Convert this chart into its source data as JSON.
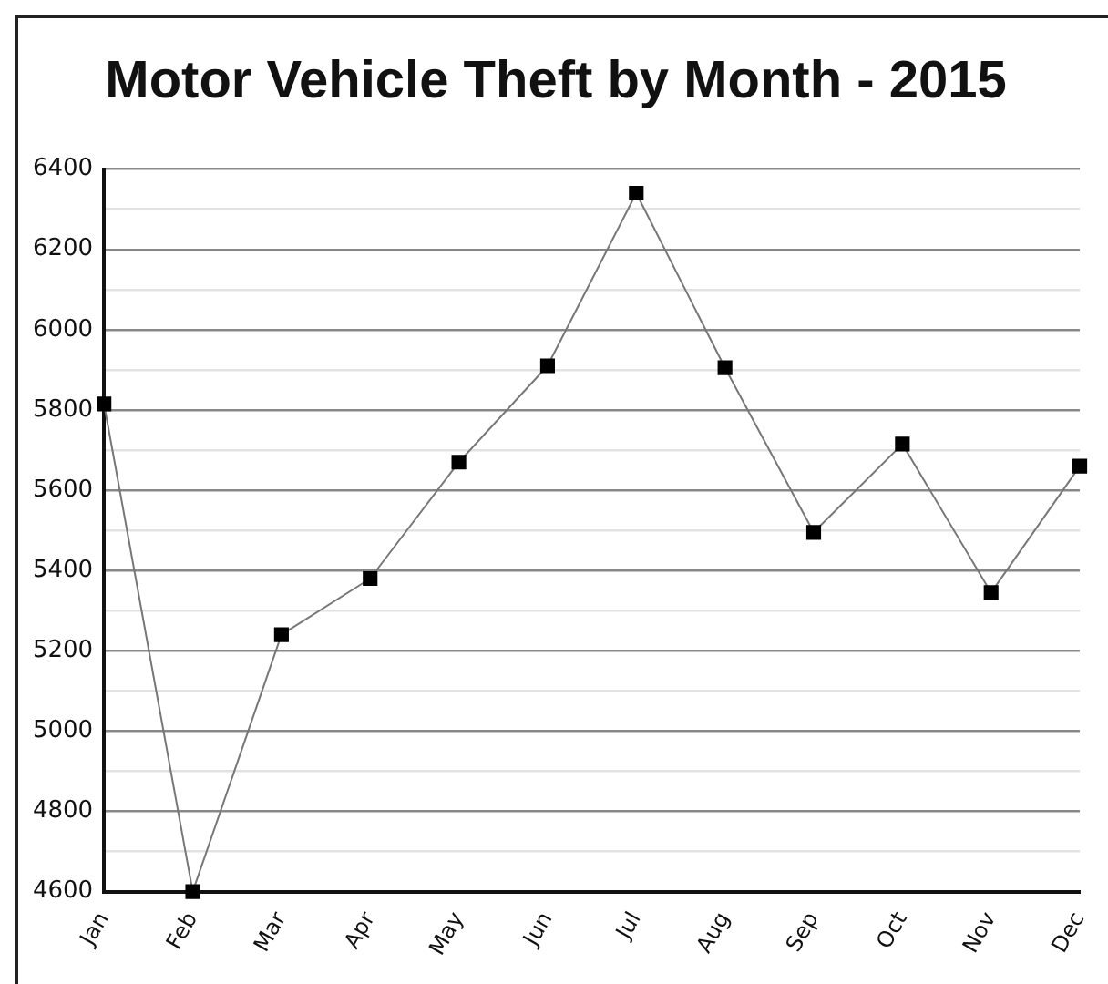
{
  "chart_data": {
    "type": "line",
    "title": "Motor Vehicle Theft by Month - 2015",
    "categories": [
      "Jan",
      "Feb",
      "Mar",
      "Apr",
      "May",
      "Jun",
      "Jul",
      "Aug",
      "Sep",
      "Oct",
      "Nov",
      "Dec"
    ],
    "series": [
      {
        "color": "#000000",
        "values": [
          5815,
          4600,
          5240,
          5380,
          5670,
          5910,
          6340,
          5905,
          5495,
          5715,
          5345,
          5660
        ]
      }
    ],
    "ylim": [
      4600,
      6400
    ],
    "yticks": [
      4600,
      {
        "value": 4700,
        "label": null
      },
      4800,
      {
        "value": 4900,
        "label": null
      },
      5000,
      {
        "value": 5100,
        "label": null
      },
      5200,
      {
        "value": 5300,
        "label": null
      },
      5400,
      {
        "value": 5500,
        "label": null
      },
      5600,
      {
        "value": 5700,
        "label": null
      },
      5800,
      {
        "value": 5900,
        "label": null
      },
      6000,
      {
        "value": 6100,
        "label": null
      },
      6200,
      {
        "value": 6300,
        "label": null
      },
      6400
    ],
    "grid": "y",
    "legend": false,
    "marker": "square",
    "line_style": "solid"
  }
}
